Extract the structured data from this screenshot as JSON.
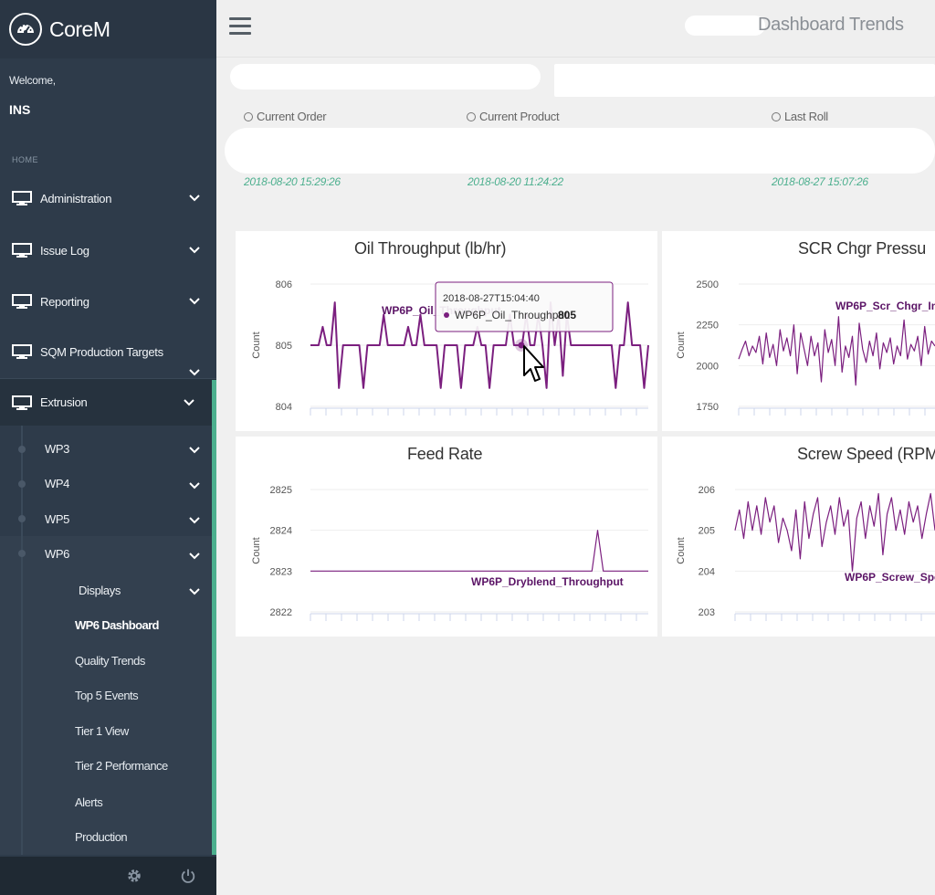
{
  "app": {
    "brand": "CoreM",
    "page_title": "Dashboard Trends"
  },
  "user": {
    "welcome": "Welcome,",
    "name": "INS"
  },
  "sidebar": {
    "section_label": "HOME",
    "items": [
      {
        "label": "Administration"
      },
      {
        "label": "Issue Log"
      },
      {
        "label": "Reporting"
      },
      {
        "label": "SQM Production Targets"
      },
      {
        "label": "Extrusion"
      }
    ],
    "extrusion_children": [
      {
        "label": "WP3"
      },
      {
        "label": "WP4"
      },
      {
        "label": "WP5"
      },
      {
        "label": "WP6"
      }
    ],
    "displays_label": "Displays",
    "display_items": [
      {
        "label": "WP6 Dashboard",
        "active": true
      },
      {
        "label": "Quality Trends"
      },
      {
        "label": "Top 5 Events"
      },
      {
        "label": "Tier 1 View"
      },
      {
        "label": "Tier 2 Performance"
      },
      {
        "label": "Alerts"
      },
      {
        "label": "Production"
      }
    ]
  },
  "info": {
    "current_order_label": "Current Order",
    "current_order_time": "2018-08-20 15:29:26",
    "current_product_label": "Current Product",
    "current_product_time": "2018-08-20 11:24:22",
    "last_roll_label": "Last Roll",
    "last_roll_time": "2018-08-27 15:07:26"
  },
  "colors": {
    "series": "#7b1f7f",
    "accent": "#4caf8e",
    "sidebar": "#2e3b4a"
  },
  "chart_data": [
    {
      "type": "line",
      "title": "Oil Throughput (lb/hr)",
      "ylabel": "Count",
      "ylim": [
        804,
        806
      ],
      "yticks": [
        "806",
        "805",
        "804"
      ],
      "series": [
        {
          "name": "WP6P_Oil_Throughput",
          "values": [
            805,
            805,
            805,
            805.3,
            805,
            805,
            805.7,
            804.3,
            805,
            805,
            805,
            805,
            805,
            804.3,
            805,
            805,
            805,
            805,
            805.5,
            805,
            805,
            805,
            805,
            805,
            805.3,
            805,
            805,
            805.5,
            805,
            805,
            805,
            805,
            804.3,
            805,
            805,
            805,
            805,
            804.3,
            805,
            805,
            805,
            805.3,
            805,
            805,
            804.3,
            805,
            805,
            805,
            805,
            805.5,
            805,
            805,
            805,
            805.5,
            805,
            805,
            805.5,
            805,
            804.3,
            805.7,
            805,
            805.5,
            804.5,
            805.5,
            805,
            805,
            805,
            805,
            805,
            805,
            805,
            805,
            805,
            805,
            805,
            804.3,
            805,
            805,
            805.7,
            805,
            805,
            805,
            804.3,
            805
          ]
        }
      ],
      "tooltip": {
        "timestamp": "2018-08-27T15:04:40",
        "series": "WP6P_Oil_Throughput:",
        "value": "805"
      }
    },
    {
      "type": "line",
      "title": "SCR Chgr Pressu",
      "ylabel": "Count",
      "ylim": [
        1750,
        2500
      ],
      "yticks": [
        "2500",
        "2250",
        "2000",
        "1750"
      ],
      "series": [
        {
          "name": "WP6P_Scr_Chgr_In",
          "values": [
            2040,
            2100,
            2150,
            2060,
            2120,
            2080,
            2180,
            2010,
            2200,
            2050,
            2130,
            2000,
            2220,
            2090,
            2170,
            2060,
            2250,
            1950,
            2200,
            2100,
            2000,
            2180,
            2060,
            2140,
            1900,
            2220,
            2080,
            2160,
            2000,
            2300,
            1960,
            2120,
            2050,
            2180,
            1880,
            2260,
            2100,
            2020,
            2150,
            2060,
            2200,
            1980,
            2140,
            2080,
            2170,
            2010,
            2120,
            2060,
            2280,
            2040,
            2130,
            2090,
            2180,
            2000,
            2240,
            2070,
            2150,
            2120
          ]
        }
      ]
    },
    {
      "type": "line",
      "title": "Feed Rate",
      "ylabel": "Count",
      "ylim": [
        2822,
        2825
      ],
      "yticks": [
        "2825",
        "2824",
        "2823",
        "2822"
      ],
      "series": [
        {
          "name": "WP6P_Dryblend_Throughput",
          "values": [
            2823,
            2823,
            2823,
            2823,
            2823,
            2823,
            2823,
            2823,
            2823,
            2823,
            2823,
            2823,
            2823,
            2823,
            2823,
            2823,
            2823,
            2823,
            2823,
            2823,
            2823,
            2823,
            2823,
            2823,
            2823,
            2823,
            2823,
            2823,
            2823,
            2823,
            2823,
            2823,
            2823,
            2823,
            2823,
            2823,
            2823,
            2823,
            2823,
            2823,
            2823,
            2823,
            2823,
            2823,
            2823,
            2823,
            2823,
            2823,
            2823,
            2823,
            2823,
            2824,
            2823,
            2823,
            2823,
            2823,
            2823,
            2823,
            2823,
            2823,
            2823
          ]
        }
      ]
    },
    {
      "type": "line",
      "title": "Screw Speed (RPM",
      "ylabel": "Count",
      "ylim": [
        203,
        206
      ],
      "yticks": [
        "206",
        "205",
        "204",
        "203"
      ],
      "series": [
        {
          "name": "WP6P_Screw_Spe",
          "values": [
            205,
            205.5,
            204.8,
            205.7,
            205,
            205.6,
            204.9,
            205.8,
            205.2,
            205.6,
            204.7,
            205.3,
            205,
            204.5,
            205.5,
            204.3,
            205.7,
            204.8,
            205.4,
            205.8,
            204.6,
            205.2,
            205.6,
            204.9,
            205.8,
            205.1,
            205.5,
            204,
            205.3,
            205.7,
            204.8,
            205.6,
            205.1,
            205.9,
            204.4,
            205.4,
            205.8,
            205,
            205.5,
            204.9,
            205.7,
            205.2,
            205.6,
            204.8,
            205.4,
            205.9,
            205
          ]
        }
      ]
    }
  ]
}
